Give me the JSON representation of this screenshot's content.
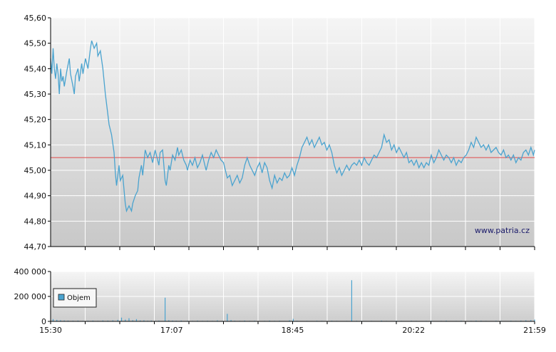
{
  "watermark": "www.patria.cz",
  "colors": {
    "price_line": "#4aa3cf",
    "reference_line": "#e05a5a",
    "axis": "#000000",
    "grid": "#ffffff",
    "plot_top": "#f4f4f4",
    "plot_bottom": "#c8c8c8"
  },
  "chart_data": [
    {
      "type": "line",
      "name": "price",
      "y_ticks": [
        "44,70",
        "44,80",
        "44,90",
        "45,00",
        "45,10",
        "45,20",
        "45,30",
        "45,40",
        "45,50",
        "45,60"
      ],
      "ylim": [
        44.7,
        45.6
      ],
      "reference_value": 45.05,
      "xlim_minutes": [
        930,
        1319
      ],
      "grid": true,
      "points": [
        [
          930,
          45.44
        ],
        [
          931,
          45.38
        ],
        [
          932,
          45.48
        ],
        [
          933,
          45.4
        ],
        [
          934,
          45.36
        ],
        [
          935,
          45.42
        ],
        [
          936,
          45.38
        ],
        [
          937,
          45.3
        ],
        [
          938,
          45.4
        ],
        [
          939,
          45.35
        ],
        [
          940,
          45.37
        ],
        [
          941,
          45.33
        ],
        [
          943,
          45.39
        ],
        [
          945,
          45.44
        ],
        [
          946,
          45.38
        ],
        [
          948,
          45.33
        ],
        [
          949,
          45.3
        ],
        [
          950,
          45.37
        ],
        [
          952,
          45.4
        ],
        [
          953,
          45.35
        ],
        [
          955,
          45.42
        ],
        [
          956,
          45.38
        ],
        [
          958,
          45.44
        ],
        [
          960,
          45.4
        ],
        [
          962,
          45.48
        ],
        [
          963,
          45.51
        ],
        [
          965,
          45.48
        ],
        [
          967,
          45.5
        ],
        [
          968,
          45.45
        ],
        [
          970,
          45.47
        ],
        [
          972,
          45.4
        ],
        [
          974,
          45.3
        ],
        [
          976,
          45.22
        ],
        [
          977,
          45.18
        ],
        [
          979,
          45.14
        ],
        [
          981,
          45.07
        ],
        [
          982,
          44.99
        ],
        [
          983,
          44.94
        ],
        [
          985,
          45.02
        ],
        [
          986,
          44.96
        ],
        [
          988,
          44.98
        ],
        [
          990,
          44.87
        ],
        [
          991,
          44.84
        ],
        [
          993,
          44.86
        ],
        [
          995,
          44.84
        ],
        [
          996,
          44.87
        ],
        [
          998,
          44.9
        ],
        [
          1000,
          44.92
        ],
        [
          1001,
          44.97
        ],
        [
          1003,
          45.02
        ],
        [
          1004,
          44.98
        ],
        [
          1006,
          45.08
        ],
        [
          1008,
          45.05
        ],
        [
          1010,
          45.07
        ],
        [
          1012,
          45.03
        ],
        [
          1014,
          45.08
        ],
        [
          1015,
          45.06
        ],
        [
          1017,
          45.02
        ],
        [
          1018,
          45.07
        ],
        [
          1020,
          45.08
        ],
        [
          1022,
          44.96
        ],
        [
          1023,
          44.94
        ],
        [
          1025,
          45.02
        ],
        [
          1026,
          45.0
        ],
        [
          1028,
          45.06
        ],
        [
          1030,
          45.04
        ],
        [
          1032,
          45.09
        ],
        [
          1033,
          45.06
        ],
        [
          1035,
          45.08
        ],
        [
          1037,
          45.04
        ],
        [
          1039,
          45.02
        ],
        [
          1040,
          45.0
        ],
        [
          1042,
          45.04
        ],
        [
          1044,
          45.02
        ],
        [
          1046,
          45.05
        ],
        [
          1048,
          45.01
        ],
        [
          1050,
          45.03
        ],
        [
          1052,
          45.06
        ],
        [
          1054,
          45.02
        ],
        [
          1055,
          45.0
        ],
        [
          1057,
          45.04
        ],
        [
          1059,
          45.07
        ],
        [
          1061,
          45.05
        ],
        [
          1063,
          45.08
        ],
        [
          1065,
          45.06
        ],
        [
          1067,
          45.04
        ],
        [
          1069,
          45.03
        ],
        [
          1071,
          44.99
        ],
        [
          1072,
          44.97
        ],
        [
          1074,
          44.98
        ],
        [
          1076,
          44.94
        ],
        [
          1078,
          44.96
        ],
        [
          1080,
          44.98
        ],
        [
          1082,
          44.95
        ],
        [
          1084,
          44.97
        ],
        [
          1086,
          45.02
        ],
        [
          1088,
          45.05
        ],
        [
          1090,
          45.02
        ],
        [
          1092,
          45.0
        ],
        [
          1094,
          44.98
        ],
        [
          1096,
          45.01
        ],
        [
          1098,
          45.03
        ],
        [
          1100,
          44.99
        ],
        [
          1102,
          45.03
        ],
        [
          1104,
          45.01
        ],
        [
          1106,
          44.96
        ],
        [
          1108,
          44.93
        ],
        [
          1110,
          44.98
        ],
        [
          1112,
          44.95
        ],
        [
          1114,
          44.97
        ],
        [
          1116,
          44.96
        ],
        [
          1118,
          44.99
        ],
        [
          1120,
          44.97
        ],
        [
          1122,
          44.98
        ],
        [
          1124,
          45.01
        ],
        [
          1126,
          44.98
        ],
        [
          1128,
          45.02
        ],
        [
          1130,
          45.05
        ],
        [
          1132,
          45.09
        ],
        [
          1134,
          45.11
        ],
        [
          1136,
          45.13
        ],
        [
          1138,
          45.1
        ],
        [
          1140,
          45.12
        ],
        [
          1142,
          45.09
        ],
        [
          1144,
          45.11
        ],
        [
          1146,
          45.13
        ],
        [
          1148,
          45.1
        ],
        [
          1150,
          45.11
        ],
        [
          1152,
          45.08
        ],
        [
          1154,
          45.1
        ],
        [
          1156,
          45.07
        ],
        [
          1158,
          45.02
        ],
        [
          1160,
          44.99
        ],
        [
          1162,
          45.01
        ],
        [
          1164,
          44.98
        ],
        [
          1166,
          45.0
        ],
        [
          1168,
          45.02
        ],
        [
          1170,
          45.0
        ],
        [
          1172,
          45.02
        ],
        [
          1174,
          45.03
        ],
        [
          1176,
          45.02
        ],
        [
          1178,
          45.04
        ],
        [
          1180,
          45.02
        ],
        [
          1182,
          45.05
        ],
        [
          1184,
          45.03
        ],
        [
          1186,
          45.02
        ],
        [
          1188,
          45.04
        ],
        [
          1190,
          45.06
        ],
        [
          1192,
          45.05
        ],
        [
          1194,
          45.07
        ],
        [
          1196,
          45.09
        ],
        [
          1198,
          45.14
        ],
        [
          1200,
          45.11
        ],
        [
          1202,
          45.12
        ],
        [
          1204,
          45.08
        ],
        [
          1206,
          45.1
        ],
        [
          1208,
          45.07
        ],
        [
          1210,
          45.09
        ],
        [
          1212,
          45.07
        ],
        [
          1214,
          45.05
        ],
        [
          1216,
          45.07
        ],
        [
          1218,
          45.03
        ],
        [
          1220,
          45.04
        ],
        [
          1222,
          45.02
        ],
        [
          1224,
          45.04
        ],
        [
          1226,
          45.01
        ],
        [
          1228,
          45.03
        ],
        [
          1230,
          45.01
        ],
        [
          1232,
          45.03
        ],
        [
          1234,
          45.02
        ],
        [
          1236,
          45.06
        ],
        [
          1238,
          45.03
        ],
        [
          1240,
          45.05
        ],
        [
          1242,
          45.08
        ],
        [
          1244,
          45.06
        ],
        [
          1246,
          45.04
        ],
        [
          1248,
          45.06
        ],
        [
          1250,
          45.05
        ],
        [
          1252,
          45.03
        ],
        [
          1254,
          45.05
        ],
        [
          1256,
          45.02
        ],
        [
          1258,
          45.04
        ],
        [
          1260,
          45.03
        ],
        [
          1262,
          45.05
        ],
        [
          1264,
          45.06
        ],
        [
          1266,
          45.08
        ],
        [
          1268,
          45.11
        ],
        [
          1270,
          45.09
        ],
        [
          1272,
          45.13
        ],
        [
          1274,
          45.11
        ],
        [
          1276,
          45.09
        ],
        [
          1278,
          45.1
        ],
        [
          1280,
          45.08
        ],
        [
          1282,
          45.1
        ],
        [
          1284,
          45.07
        ],
        [
          1286,
          45.08
        ],
        [
          1288,
          45.09
        ],
        [
          1290,
          45.07
        ],
        [
          1292,
          45.06
        ],
        [
          1294,
          45.08
        ],
        [
          1296,
          45.05
        ],
        [
          1298,
          45.06
        ],
        [
          1300,
          45.04
        ],
        [
          1302,
          45.06
        ],
        [
          1304,
          45.03
        ],
        [
          1306,
          45.05
        ],
        [
          1308,
          45.04
        ],
        [
          1310,
          45.07
        ],
        [
          1312,
          45.08
        ],
        [
          1314,
          45.06
        ],
        [
          1316,
          45.09
        ],
        [
          1318,
          45.06
        ],
        [
          1319,
          45.08
        ]
      ]
    },
    {
      "type": "bar",
      "name": "volume",
      "y_ticks": [
        "0",
        "200 000",
        "400 000"
      ],
      "ylim": [
        0,
        400000
      ],
      "legend": "Objem",
      "legend_position": "top-left",
      "x_ticks": [
        "15:30",
        "17:07",
        "18:45",
        "20:22",
        "21:59"
      ],
      "xlim_minutes": [
        930,
        1319
      ],
      "grid": true,
      "bars": [
        [
          932,
          18000
        ],
        [
          935,
          12000
        ],
        [
          938,
          9000
        ],
        [
          941,
          7000
        ],
        [
          944,
          6000
        ],
        [
          948,
          5000
        ],
        [
          952,
          6000
        ],
        [
          956,
          4000
        ],
        [
          960,
          5000
        ],
        [
          964,
          6000
        ],
        [
          968,
          4000
        ],
        [
          972,
          7000
        ],
        [
          976,
          6000
        ],
        [
          980,
          8000
        ],
        [
          984,
          12000
        ],
        [
          987,
          30000
        ],
        [
          990,
          14000
        ],
        [
          993,
          25000
        ],
        [
          996,
          9000
        ],
        [
          999,
          18000
        ],
        [
          1002,
          7000
        ],
        [
          1005,
          8000
        ],
        [
          1008,
          5000
        ],
        [
          1011,
          6000
        ],
        [
          1014,
          4000
        ],
        [
          1017,
          6000
        ],
        [
          1022,
          190000
        ],
        [
          1025,
          9000
        ],
        [
          1028,
          6000
        ],
        [
          1031,
          5000
        ],
        [
          1035,
          6000
        ],
        [
          1040,
          5000
        ],
        [
          1044,
          4000
        ],
        [
          1048,
          6000
        ],
        [
          1052,
          4000
        ],
        [
          1056,
          5000
        ],
        [
          1060,
          4000
        ],
        [
          1064,
          8000
        ],
        [
          1068,
          4000
        ],
        [
          1072,
          60000
        ],
        [
          1075,
          10000
        ],
        [
          1078,
          5000
        ],
        [
          1082,
          4000
        ],
        [
          1086,
          6000
        ],
        [
          1090,
          4000
        ],
        [
          1094,
          5000
        ],
        [
          1098,
          3000
        ],
        [
          1102,
          4000
        ],
        [
          1106,
          6000
        ],
        [
          1110,
          4000
        ],
        [
          1114,
          5000
        ],
        [
          1118,
          3000
        ],
        [
          1122,
          8000
        ],
        [
          1125,
          20000
        ],
        [
          1128,
          5000
        ],
        [
          1132,
          3000
        ],
        [
          1136,
          4000
        ],
        [
          1140,
          3000
        ],
        [
          1144,
          5000
        ],
        [
          1148,
          4000
        ],
        [
          1152,
          3000
        ],
        [
          1156,
          5000
        ],
        [
          1160,
          4000
        ],
        [
          1164,
          3000
        ],
        [
          1168,
          4000
        ],
        [
          1172,
          330000
        ],
        [
          1176,
          5000
        ],
        [
          1180,
          4000
        ],
        [
          1184,
          3000
        ],
        [
          1188,
          4000
        ],
        [
          1192,
          3000
        ],
        [
          1196,
          6000
        ],
        [
          1200,
          4000
        ],
        [
          1204,
          3000
        ],
        [
          1208,
          5000
        ],
        [
          1212,
          4000
        ],
        [
          1216,
          3000
        ],
        [
          1220,
          5000
        ],
        [
          1224,
          4000
        ],
        [
          1228,
          3000
        ],
        [
          1232,
          4000
        ],
        [
          1236,
          5000
        ],
        [
          1240,
          3000
        ],
        [
          1244,
          4000
        ],
        [
          1248,
          6000
        ],
        [
          1252,
          3000
        ],
        [
          1256,
          4000
        ],
        [
          1260,
          5000
        ],
        [
          1264,
          3000
        ],
        [
          1268,
          4000
        ],
        [
          1272,
          6000
        ],
        [
          1276,
          5000
        ],
        [
          1280,
          4000
        ],
        [
          1284,
          3000
        ],
        [
          1288,
          5000
        ],
        [
          1292,
          4000
        ],
        [
          1296,
          3000
        ],
        [
          1300,
          5000
        ],
        [
          1304,
          4000
        ],
        [
          1308,
          6000
        ],
        [
          1312,
          8000
        ],
        [
          1316,
          10000
        ],
        [
          1319,
          14000
        ]
      ]
    }
  ]
}
